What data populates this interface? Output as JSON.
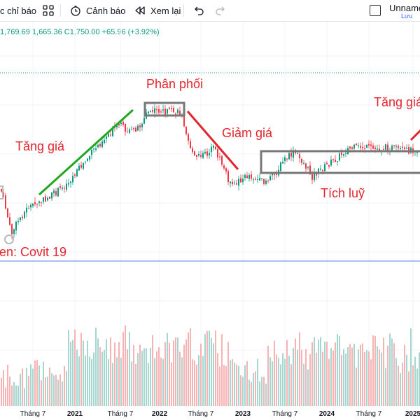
{
  "toolbar": {
    "indicator_label": "c chỉ báo",
    "alert_label": "Cảnh báo",
    "replay_label": "Xem lại",
    "username": "Unname",
    "save_label": "Lưu"
  },
  "ohlc": {
    "h": "1,769.69",
    "l": "1,665.36",
    "c": "C1,750.00",
    "change": "+65.96 (+3.92%)"
  },
  "colors": {
    "up": "#089981",
    "down": "#f23645",
    "up_volume": "#a5d6cf",
    "down_volume": "#f7b3b3",
    "annotation_red": "#e3262d",
    "trendline_green": "#1fa81f",
    "box_gray": "#777777",
    "hline_blue": "#5b7be6"
  },
  "annotations": {
    "accumulation_left": "en: Covit 19",
    "uptrend": "Tăng giá",
    "distribution": "Phân phối",
    "downtrend": "Giảm giá",
    "accumulation": "Tích luỹ",
    "uptrend_right": "Tăng giá"
  },
  "x_axis": {
    "ticks": [
      {
        "label": "Tháng 7",
        "bold": false
      },
      {
        "label": "2021",
        "bold": true
      },
      {
        "label": "Tháng 7",
        "bold": false
      },
      {
        "label": "2022",
        "bold": true
      },
      {
        "label": "Tháng 7",
        "bold": false
      },
      {
        "label": "2023",
        "bold": true
      },
      {
        "label": "Tháng 7",
        "bold": false
      },
      {
        "label": "2024",
        "bold": true
      },
      {
        "label": "Tháng 7",
        "bold": false
      },
      {
        "label": "2025",
        "bold": true
      }
    ]
  }
}
